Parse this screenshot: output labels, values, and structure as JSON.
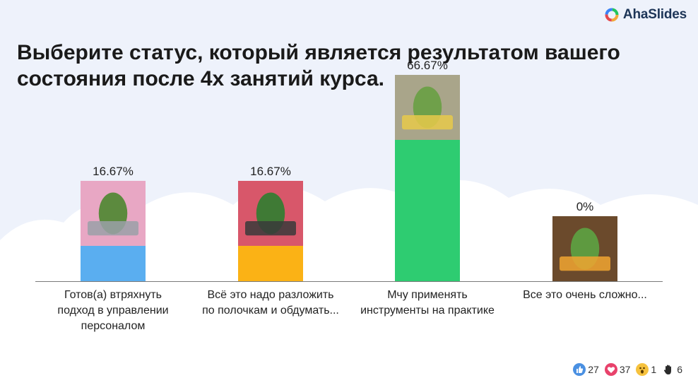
{
  "brand": {
    "name": "AhaSlides"
  },
  "question": "Выберите статус, который является результатом вашего состояния после 4х занятий курса.",
  "chart_data": {
    "type": "bar",
    "categories": [
      [
        "Готов(а) втряхнуть",
        "подход в управлении",
        "персоналом"
      ],
      [
        "Всё это надо разложить",
        "по полочкам и обдумать..."
      ],
      [
        "Мчу применять",
        "инструменты на практике"
      ],
      [
        "Все это очень сложно..."
      ]
    ],
    "values": [
      16.67,
      16.67,
      66.67,
      0
    ],
    "value_labels": [
      "16.67%",
      "16.67%",
      "66.67%",
      "0%"
    ],
    "colors": [
      "#5aaef0",
      "#fbb215",
      "#2ecc71",
      "#8a5a2e"
    ],
    "ylim": [
      0,
      100
    ],
    "grid": false,
    "legend": false
  },
  "reactions": [
    {
      "icon": "like-icon",
      "count": "27"
    },
    {
      "icon": "heart-icon",
      "count": "37"
    },
    {
      "icon": "wow-icon",
      "count": "1"
    },
    {
      "icon": "raised-hand-icon",
      "count": "6"
    }
  ]
}
